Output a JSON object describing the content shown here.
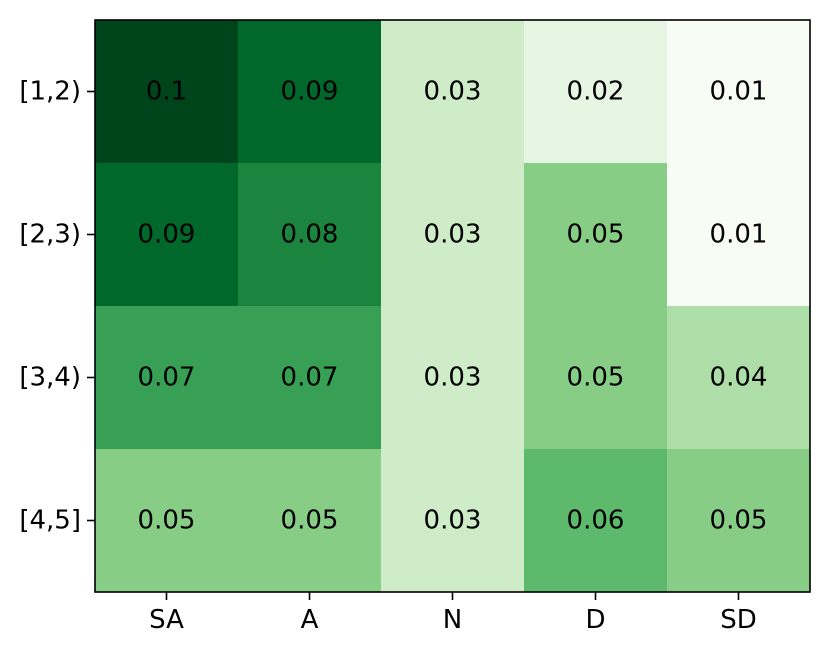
{
  "chart_data": {
    "type": "heatmap",
    "title": "",
    "xlabel": "",
    "ylabel": "",
    "x_categories": [
      "SA",
      "A",
      "N",
      "D",
      "SD"
    ],
    "y_categories": [
      "[1,2)",
      "[2,3)",
      "[3,4)",
      "[4,5]"
    ],
    "values": [
      [
        0.1,
        0.09,
        0.03,
        0.02,
        0.01
      ],
      [
        0.09,
        0.08,
        0.03,
        0.05,
        0.01
      ],
      [
        0.07,
        0.07,
        0.03,
        0.05,
        0.04
      ],
      [
        0.05,
        0.05,
        0.03,
        0.06,
        0.05
      ]
    ],
    "colormap": "Greens",
    "colors": {
      "low": "#f7fcf5",
      "high": "#00441b"
    },
    "grid": false,
    "legend": "none"
  }
}
